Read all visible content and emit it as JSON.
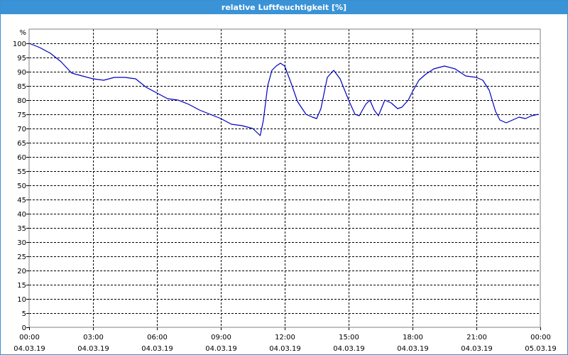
{
  "window": {
    "title": "relative Luftfeuchtigkeit [%]"
  },
  "chart_data": {
    "type": "line",
    "title": "relative Luftfeuchtigkeit [%]",
    "ylabel": "%",
    "xlabel": "",
    "ylim": [
      0,
      100
    ],
    "xlim": [
      0,
      24
    ],
    "grid": true,
    "legend": "none",
    "y_ticks": [
      0,
      5,
      10,
      15,
      20,
      25,
      30,
      35,
      40,
      45,
      50,
      55,
      60,
      65,
      70,
      75,
      80,
      85,
      90,
      95,
      100
    ],
    "x_ticks": [
      {
        "time": "00:00",
        "date": "04.03.19"
      },
      {
        "time": "03:00",
        "date": "04.03.19"
      },
      {
        "time": "06:00",
        "date": "04.03.19"
      },
      {
        "time": "09:00",
        "date": "04.03.19"
      },
      {
        "time": "12:00",
        "date": "04.03.19"
      },
      {
        "time": "15:00",
        "date": "04.03.19"
      },
      {
        "time": "18:00",
        "date": "04.03.19"
      },
      {
        "time": "21:00",
        "date": "04.03.19"
      },
      {
        "time": "00:00",
        "date": "05.03.19"
      }
    ],
    "series": [
      {
        "color": "#0000c0",
        "x": [
          0,
          0.5,
          1.0,
          1.5,
          2.0,
          2.5,
          3.0,
          3.5,
          4.0,
          4.5,
          5.0,
          5.5,
          6.0,
          6.5,
          7.0,
          7.5,
          8.0,
          8.5,
          9.0,
          9.5,
          10.0,
          10.5,
          10.85,
          11.0,
          11.2,
          11.4,
          11.6,
          11.8,
          12.0,
          12.3,
          12.6,
          13.0,
          13.3,
          13.5,
          13.7,
          14.0,
          14.3,
          14.6,
          15.0,
          15.3,
          15.5,
          15.8,
          16.0,
          16.2,
          16.4,
          16.7,
          17.0,
          17.3,
          17.5,
          17.8,
          18.0,
          18.3,
          18.6,
          19.0,
          19.5,
          20.0,
          20.5,
          21.0,
          21.3,
          21.6,
          21.9,
          22.1,
          22.4,
          22.7,
          23.0,
          23.3,
          23.6,
          23.9
        ],
        "values": [
          100,
          98.5,
          96.5,
          93.5,
          89.5,
          88.5,
          87.5,
          87,
          88,
          88,
          87.5,
          84.5,
          82.5,
          80.5,
          80,
          78.5,
          76.5,
          75,
          73.5,
          71.5,
          71,
          70,
          67.5,
          73,
          85,
          90.5,
          92,
          93,
          92,
          86,
          79.5,
          75,
          74,
          73.5,
          77,
          88,
          90.5,
          87.5,
          80,
          75,
          74.5,
          78.5,
          80,
          76.5,
          74.5,
          80,
          79,
          77,
          77.5,
          80,
          83,
          87,
          89,
          91,
          92,
          91,
          88.5,
          88,
          87,
          83.5,
          76,
          73,
          72,
          73,
          74,
          73.5,
          74.5,
          75
        ]
      }
    ]
  }
}
